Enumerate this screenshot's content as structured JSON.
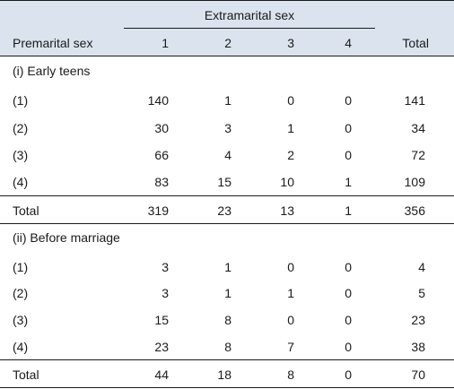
{
  "header": {
    "spanner": "Extramarital sex",
    "row_header": "Premarital sex",
    "columns": [
      "1",
      "2",
      "3",
      "4",
      "Total"
    ]
  },
  "sections": [
    {
      "title": "(i) Early teens",
      "rows": [
        {
          "label": "(1)",
          "values": [
            "140",
            "1",
            "0",
            "0",
            "141"
          ]
        },
        {
          "label": "(2)",
          "values": [
            "30",
            "3",
            "1",
            "0",
            "34"
          ]
        },
        {
          "label": "(3)",
          "values": [
            "66",
            "4",
            "2",
            "0",
            "72"
          ]
        },
        {
          "label": "(4)",
          "values": [
            "83",
            "15",
            "10",
            "1",
            "109"
          ]
        }
      ],
      "total": {
        "label": "Total",
        "values": [
          "319",
          "23",
          "13",
          "1",
          "356"
        ]
      }
    },
    {
      "title": "(ii) Before marriage",
      "rows": [
        {
          "label": "(1)",
          "values": [
            "3",
            "1",
            "0",
            "0",
            "4"
          ]
        },
        {
          "label": "(2)",
          "values": [
            "3",
            "1",
            "1",
            "0",
            "5"
          ]
        },
        {
          "label": "(3)",
          "values": [
            "15",
            "8",
            "0",
            "0",
            "23"
          ]
        },
        {
          "label": "(4)",
          "values": [
            "23",
            "8",
            "7",
            "0",
            "38"
          ]
        }
      ],
      "total": {
        "label": "Total",
        "values": [
          "44",
          "18",
          "8",
          "0",
          "70"
        ]
      }
    }
  ]
}
